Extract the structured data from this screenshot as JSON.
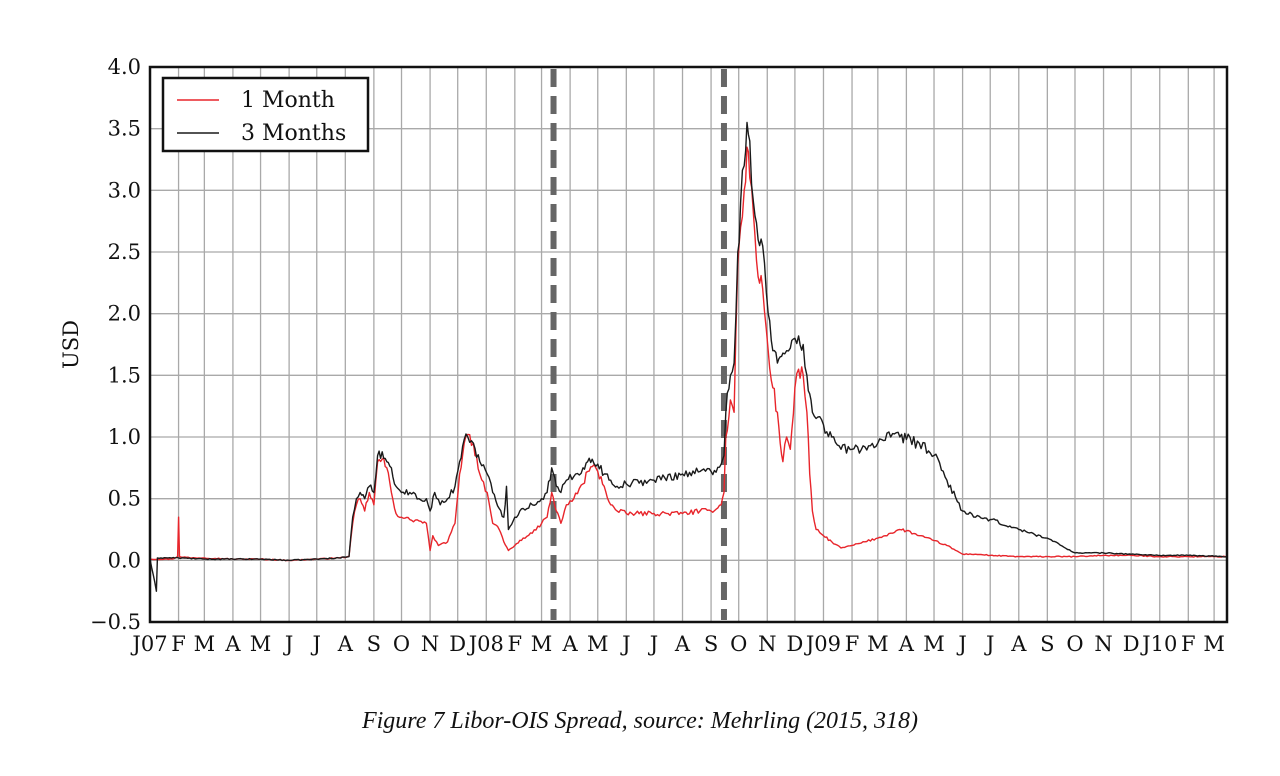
{
  "caption": "Figure 7 Libor-OIS Spread, source: Mehrling (2015, 318)",
  "chart_data": {
    "type": "line",
    "title": "",
    "xlabel": "",
    "ylabel": "USD",
    "ylim": [
      -0.5,
      4.0
    ],
    "yticks": [
      -0.5,
      0.0,
      0.5,
      1.0,
      1.5,
      2.0,
      2.5,
      3.0,
      3.5,
      4.0
    ],
    "ytick_labels": [
      "−0.5",
      "0.0",
      "0.5",
      "1.0",
      "1.5",
      "2.0",
      "2.5",
      "3.0",
      "3.5",
      "4.0"
    ],
    "xlim": [
      "2007-01-01",
      "2010-03-15"
    ],
    "xtick_labels": [
      "J07",
      "F",
      "M",
      "A",
      "M",
      "J",
      "J",
      "A",
      "S",
      "O",
      "N",
      "D",
      "J08",
      "F",
      "M",
      "A",
      "M",
      "J",
      "J",
      "A",
      "S",
      "O",
      "N",
      "D",
      "J09",
      "F",
      "M",
      "A",
      "M",
      "J",
      "J",
      "A",
      "S",
      "O",
      "N",
      "D",
      "J10",
      "F",
      "M"
    ],
    "grid": true,
    "legend_position": "top-left",
    "vlines": [
      {
        "x": "2008-03-14",
        "style": "dashed",
        "color": "#666666"
      },
      {
        "x": "2008-09-15",
        "style": "dashed",
        "color": "#666666"
      }
    ],
    "series": [
      {
        "name": "1 Month",
        "color": "#e8252b",
        "points": [
          [
            "2007-01-01",
            0.01
          ],
          [
            "2007-01-25",
            0.01
          ],
          [
            "2007-01-31",
            0.03
          ],
          [
            "2007-02-01",
            0.35
          ],
          [
            "2007-02-02",
            0.03
          ],
          [
            "2007-02-15",
            0.02
          ],
          [
            "2007-03-01",
            0.02
          ],
          [
            "2007-04-01",
            0.01
          ],
          [
            "2007-05-01",
            0.01
          ],
          [
            "2007-06-01",
            0.0
          ],
          [
            "2007-07-01",
            0.01
          ],
          [
            "2007-07-25",
            0.02
          ],
          [
            "2007-08-05",
            0.03
          ],
          [
            "2007-08-09",
            0.3
          ],
          [
            "2007-08-13",
            0.45
          ],
          [
            "2007-08-17",
            0.5
          ],
          [
            "2007-08-22",
            0.4
          ],
          [
            "2007-08-27",
            0.55
          ],
          [
            "2007-09-01",
            0.45
          ],
          [
            "2007-09-05",
            0.8
          ],
          [
            "2007-09-10",
            0.82
          ],
          [
            "2007-09-15",
            0.75
          ],
          [
            "2007-09-20",
            0.55
          ],
          [
            "2007-09-25",
            0.38
          ],
          [
            "2007-10-01",
            0.35
          ],
          [
            "2007-10-10",
            0.33
          ],
          [
            "2007-10-20",
            0.32
          ],
          [
            "2007-10-28",
            0.3
          ],
          [
            "2007-11-01",
            0.08
          ],
          [
            "2007-11-04",
            0.2
          ],
          [
            "2007-11-10",
            0.12
          ],
          [
            "2007-11-20",
            0.15
          ],
          [
            "2007-11-28",
            0.3
          ],
          [
            "2007-12-03",
            0.7
          ],
          [
            "2007-12-08",
            0.95
          ],
          [
            "2007-12-12",
            1.02
          ],
          [
            "2007-12-18",
            0.95
          ],
          [
            "2007-12-25",
            0.7
          ],
          [
            "2008-01-02",
            0.55
          ],
          [
            "2008-01-08",
            0.3
          ],
          [
            "2008-01-15",
            0.25
          ],
          [
            "2008-01-20",
            0.15
          ],
          [
            "2008-01-25",
            0.08
          ],
          [
            "2008-02-01",
            0.12
          ],
          [
            "2008-02-10",
            0.18
          ],
          [
            "2008-02-20",
            0.22
          ],
          [
            "2008-03-01",
            0.3
          ],
          [
            "2008-03-07",
            0.35
          ],
          [
            "2008-03-12",
            0.55
          ],
          [
            "2008-03-17",
            0.4
          ],
          [
            "2008-03-22",
            0.3
          ],
          [
            "2008-03-28",
            0.45
          ],
          [
            "2008-04-05",
            0.5
          ],
          [
            "2008-04-15",
            0.62
          ],
          [
            "2008-04-20",
            0.72
          ],
          [
            "2008-04-25",
            0.76
          ],
          [
            "2008-05-01",
            0.72
          ],
          [
            "2008-05-08",
            0.6
          ],
          [
            "2008-05-15",
            0.45
          ],
          [
            "2008-05-22",
            0.4
          ],
          [
            "2008-06-01",
            0.38
          ],
          [
            "2008-07-01",
            0.38
          ],
          [
            "2008-08-01",
            0.38
          ],
          [
            "2008-08-20",
            0.4
          ],
          [
            "2008-09-01",
            0.4
          ],
          [
            "2008-09-12",
            0.45
          ],
          [
            "2008-09-15",
            0.55
          ],
          [
            "2008-09-17",
            1.0
          ],
          [
            "2008-09-22",
            1.3
          ],
          [
            "2008-09-26",
            1.2
          ],
          [
            "2008-09-30",
            2.4
          ],
          [
            "2008-10-03",
            2.7
          ],
          [
            "2008-10-07",
            3.0
          ],
          [
            "2008-10-10",
            3.35
          ],
          [
            "2008-10-13",
            3.1
          ],
          [
            "2008-10-17",
            2.8
          ],
          [
            "2008-10-22",
            2.3
          ],
          [
            "2008-10-27",
            2.2
          ],
          [
            "2008-11-02",
            1.7
          ],
          [
            "2008-11-07",
            1.4
          ],
          [
            "2008-11-12",
            1.2
          ],
          [
            "2008-11-15",
            0.95
          ],
          [
            "2008-11-18",
            0.8
          ],
          [
            "2008-11-22",
            1.0
          ],
          [
            "2008-11-26",
            0.9
          ],
          [
            "2008-12-01",
            1.4
          ],
          [
            "2008-12-05",
            1.55
          ],
          [
            "2008-12-10",
            1.5
          ],
          [
            "2008-12-14",
            1.2
          ],
          [
            "2008-12-17",
            0.7
          ],
          [
            "2008-12-20",
            0.4
          ],
          [
            "2008-12-24",
            0.25
          ],
          [
            "2009-01-01",
            0.2
          ],
          [
            "2009-01-10",
            0.15
          ],
          [
            "2009-01-20",
            0.1
          ],
          [
            "2009-02-01",
            0.12
          ],
          [
            "2009-02-15",
            0.15
          ],
          [
            "2009-03-01",
            0.18
          ],
          [
            "2009-03-15",
            0.22
          ],
          [
            "2009-03-25",
            0.25
          ],
          [
            "2009-04-01",
            0.24
          ],
          [
            "2009-04-15",
            0.2
          ],
          [
            "2009-05-01",
            0.16
          ],
          [
            "2009-05-15",
            0.12
          ],
          [
            "2009-06-01",
            0.05
          ],
          [
            "2009-06-15",
            0.05
          ],
          [
            "2009-07-01",
            0.04
          ],
          [
            "2009-08-01",
            0.03
          ],
          [
            "2009-09-01",
            0.03
          ],
          [
            "2009-10-01",
            0.03
          ],
          [
            "2009-11-01",
            0.04
          ],
          [
            "2009-12-01",
            0.04
          ],
          [
            "2010-01-01",
            0.03
          ],
          [
            "2010-02-01",
            0.03
          ],
          [
            "2010-03-15",
            0.03
          ]
        ]
      },
      {
        "name": "3 Months",
        "color": "#1a1a1a",
        "points": [
          [
            "2007-01-01",
            0.01
          ],
          [
            "2007-01-08",
            -0.25
          ],
          [
            "2007-01-09",
            0.02
          ],
          [
            "2007-02-01",
            0.02
          ],
          [
            "2007-03-01",
            0.01
          ],
          [
            "2007-04-01",
            0.01
          ],
          [
            "2007-05-01",
            0.01
          ],
          [
            "2007-06-01",
            0.0
          ],
          [
            "2007-07-01",
            0.01
          ],
          [
            "2007-07-25",
            0.02
          ],
          [
            "2007-08-05",
            0.03
          ],
          [
            "2007-08-09",
            0.35
          ],
          [
            "2007-08-13",
            0.5
          ],
          [
            "2007-08-17",
            0.55
          ],
          [
            "2007-08-22",
            0.5
          ],
          [
            "2007-08-27",
            0.6
          ],
          [
            "2007-09-01",
            0.55
          ],
          [
            "2007-09-05",
            0.85
          ],
          [
            "2007-09-10",
            0.88
          ],
          [
            "2007-09-15",
            0.8
          ],
          [
            "2007-09-20",
            0.75
          ],
          [
            "2007-09-25",
            0.6
          ],
          [
            "2007-10-01",
            0.55
          ],
          [
            "2007-10-10",
            0.55
          ],
          [
            "2007-10-20",
            0.5
          ],
          [
            "2007-10-28",
            0.5
          ],
          [
            "2007-11-01",
            0.4
          ],
          [
            "2007-11-06",
            0.55
          ],
          [
            "2007-11-12",
            0.45
          ],
          [
            "2007-11-20",
            0.5
          ],
          [
            "2007-11-28",
            0.6
          ],
          [
            "2007-12-03",
            0.8
          ],
          [
            "2007-12-08",
            0.98
          ],
          [
            "2007-12-12",
            1.0
          ],
          [
            "2007-12-18",
            0.95
          ],
          [
            "2007-12-25",
            0.8
          ],
          [
            "2008-01-02",
            0.7
          ],
          [
            "2008-01-08",
            0.55
          ],
          [
            "2008-01-15",
            0.42
          ],
          [
            "2008-01-20",
            0.35
          ],
          [
            "2008-01-23",
            0.6
          ],
          [
            "2008-01-25",
            0.25
          ],
          [
            "2008-02-01",
            0.35
          ],
          [
            "2008-02-10",
            0.42
          ],
          [
            "2008-02-20",
            0.45
          ],
          [
            "2008-03-01",
            0.5
          ],
          [
            "2008-03-07",
            0.55
          ],
          [
            "2008-03-12",
            0.75
          ],
          [
            "2008-03-17",
            0.6
          ],
          [
            "2008-03-22",
            0.55
          ],
          [
            "2008-03-28",
            0.65
          ],
          [
            "2008-04-05",
            0.68
          ],
          [
            "2008-04-15",
            0.75
          ],
          [
            "2008-04-20",
            0.8
          ],
          [
            "2008-04-25",
            0.82
          ],
          [
            "2008-05-01",
            0.78
          ],
          [
            "2008-05-08",
            0.7
          ],
          [
            "2008-05-15",
            0.65
          ],
          [
            "2008-05-22",
            0.6
          ],
          [
            "2008-06-01",
            0.62
          ],
          [
            "2008-07-01",
            0.65
          ],
          [
            "2008-08-01",
            0.7
          ],
          [
            "2008-08-20",
            0.72
          ],
          [
            "2008-09-01",
            0.72
          ],
          [
            "2008-09-12",
            0.78
          ],
          [
            "2008-09-15",
            0.85
          ],
          [
            "2008-09-17",
            1.2
          ],
          [
            "2008-09-22",
            1.5
          ],
          [
            "2008-09-26",
            1.6
          ],
          [
            "2008-09-30",
            2.5
          ],
          [
            "2008-10-03",
            2.9
          ],
          [
            "2008-10-07",
            3.2
          ],
          [
            "2008-10-10",
            3.55
          ],
          [
            "2008-10-13",
            3.4
          ],
          [
            "2008-10-17",
            2.9
          ],
          [
            "2008-10-22",
            2.6
          ],
          [
            "2008-10-27",
            2.55
          ],
          [
            "2008-11-02",
            2.0
          ],
          [
            "2008-11-07",
            1.7
          ],
          [
            "2008-11-12",
            1.6
          ],
          [
            "2008-11-15",
            1.65
          ],
          [
            "2008-11-18",
            1.68
          ],
          [
            "2008-11-22",
            1.7
          ],
          [
            "2008-11-26",
            1.72
          ],
          [
            "2008-12-01",
            1.8
          ],
          [
            "2008-12-05",
            1.82
          ],
          [
            "2008-12-10",
            1.75
          ],
          [
            "2008-12-14",
            1.5
          ],
          [
            "2008-12-17",
            1.35
          ],
          [
            "2008-12-20",
            1.2
          ],
          [
            "2008-12-24",
            1.15
          ],
          [
            "2009-01-01",
            1.1
          ],
          [
            "2009-01-10",
            1.0
          ],
          [
            "2009-01-20",
            0.9
          ],
          [
            "2009-02-01",
            0.9
          ],
          [
            "2009-02-15",
            0.92
          ],
          [
            "2009-03-01",
            0.95
          ],
          [
            "2009-03-15",
            1.0
          ],
          [
            "2009-03-25",
            1.0
          ],
          [
            "2009-04-01",
            0.98
          ],
          [
            "2009-04-15",
            0.95
          ],
          [
            "2009-05-01",
            0.85
          ],
          [
            "2009-05-15",
            0.65
          ],
          [
            "2009-06-01",
            0.4
          ],
          [
            "2009-06-15",
            0.35
          ],
          [
            "2009-07-01",
            0.33
          ],
          [
            "2009-08-01",
            0.25
          ],
          [
            "2009-09-01",
            0.18
          ],
          [
            "2009-10-01",
            0.06
          ],
          [
            "2009-11-01",
            0.06
          ],
          [
            "2009-12-01",
            0.05
          ],
          [
            "2010-01-01",
            0.04
          ],
          [
            "2010-02-01",
            0.04
          ],
          [
            "2010-03-15",
            0.03
          ]
        ]
      }
    ]
  }
}
